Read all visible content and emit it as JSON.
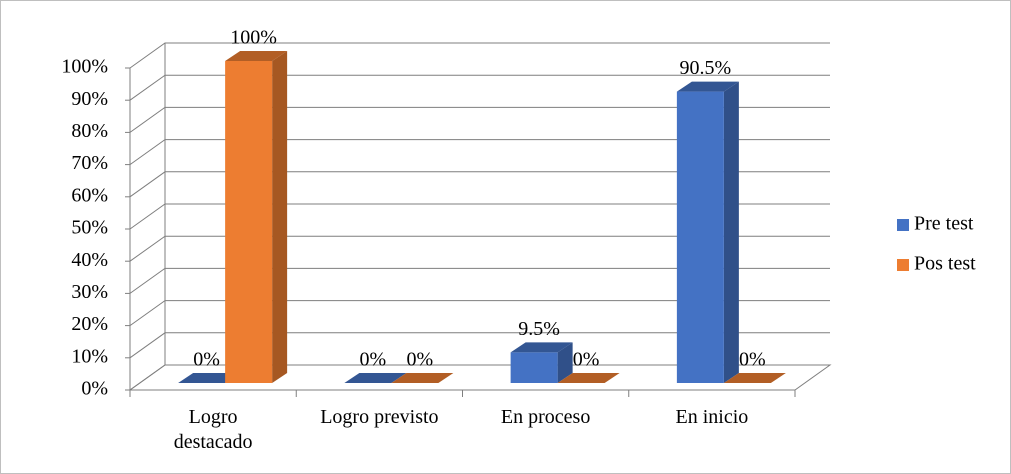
{
  "chart_data": {
    "type": "bar3d",
    "categories": [
      "Logro destacado",
      "Logro previsto",
      "En proceso",
      "En inicio"
    ],
    "series": [
      {
        "name": "Pre test",
        "color": "#4472c4",
        "values": [
          0,
          0,
          9.5,
          90.5
        ],
        "value_labels": [
          "0%",
          "0%",
          "9.5%",
          "90.5%"
        ]
      },
      {
        "name": "Pos test",
        "color": "#ed7d31",
        "values": [
          100,
          0,
          0,
          0
        ],
        "value_labels": [
          "100%",
          "0%",
          "0%",
          "0%"
        ]
      }
    ],
    "ylim": [
      0,
      100
    ],
    "yticks": [
      {
        "value": 0,
        "label": "0%"
      },
      {
        "value": 10,
        "label": "10%"
      },
      {
        "value": 20,
        "label": "20%"
      },
      {
        "value": 30,
        "label": "30%"
      },
      {
        "value": 40,
        "label": "40%"
      },
      {
        "value": 50,
        "label": "50%"
      },
      {
        "value": 60,
        "label": "60%"
      },
      {
        "value": 70,
        "label": "70%"
      },
      {
        "value": 80,
        "label": "80%"
      },
      {
        "value": 90,
        "label": "90%"
      },
      {
        "value": 100,
        "label": "100%"
      }
    ],
    "grid": true,
    "legend": "right"
  }
}
